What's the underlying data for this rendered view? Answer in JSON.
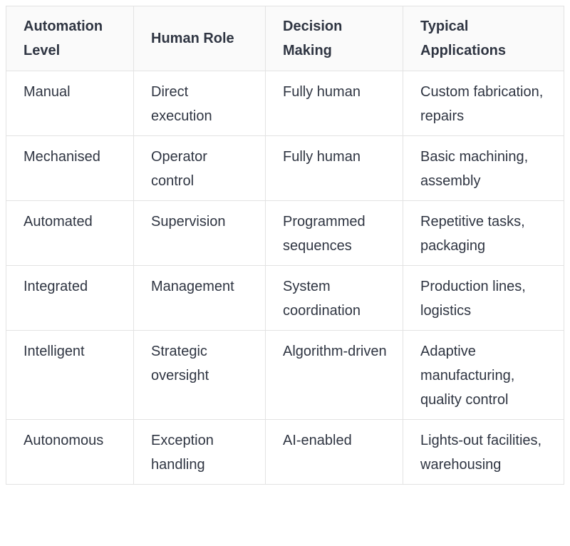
{
  "table": {
    "headers": [
      "Automation Level",
      "Human Role",
      "Decision Making",
      "Typical Applications"
    ],
    "rows": [
      [
        "Manual",
        "Direct execution",
        "Fully human",
        "Custom fabrication, repairs"
      ],
      [
        "Mechanised",
        "Operator control",
        "Fully human",
        "Basic machining, assembly"
      ],
      [
        "Automated",
        "Supervision",
        "Programmed sequences",
        "Repetitive tasks, packaging"
      ],
      [
        "Integrated",
        "Management",
        "System coordination",
        "Production lines, logistics"
      ],
      [
        "Intelligent",
        "Strategic oversight",
        "Algorithm-driven",
        "Adaptive manufacturing, quality control"
      ],
      [
        "Autonomous",
        "Exception handling",
        "AI-enabled",
        "Lights-out facilities, warehousing"
      ]
    ]
  }
}
